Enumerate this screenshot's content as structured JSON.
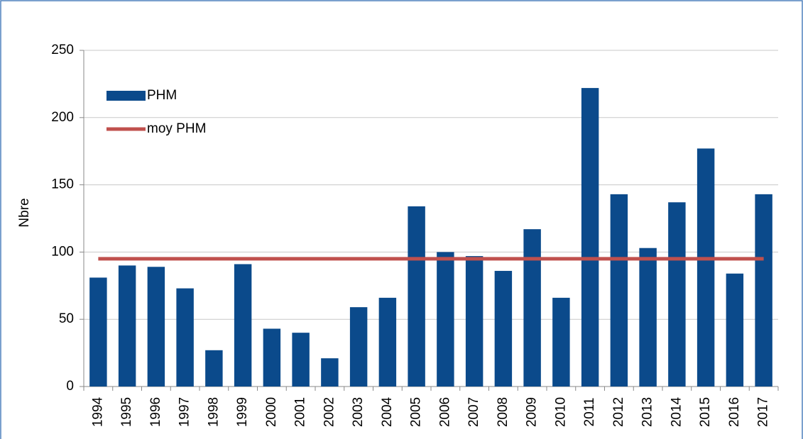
{
  "chart_data": {
    "type": "bar",
    "y_label": "Nbre",
    "categories": [
      "1994",
      "1995",
      "1996",
      "1997",
      "1998",
      "1999",
      "2000",
      "2001",
      "2002",
      "2003",
      "2004",
      "2005",
      "2006",
      "2007",
      "2008",
      "2009",
      "2010",
      "2011",
      "2012",
      "2013",
      "2014",
      "2015",
      "2016",
      "2017"
    ],
    "series": [
      {
        "name": "PHM",
        "type": "bar",
        "color": "#0b4a8b",
        "values": [
          81,
          90,
          89,
          73,
          27,
          91,
          43,
          40,
          21,
          59,
          66,
          134,
          100,
          97,
          86,
          117,
          66,
          222,
          143,
          103,
          137,
          177,
          84,
          143
        ]
      },
      {
        "name": "moy PHM",
        "type": "line",
        "color": "#c0504d",
        "values": [
          95,
          95,
          95,
          95,
          95,
          95,
          95,
          95,
          95,
          95,
          95,
          95,
          95,
          95,
          95,
          95,
          95,
          95,
          95,
          95,
          95,
          95,
          95,
          95
        ]
      }
    ],
    "ylim": [
      0,
      250
    ],
    "yticks": [
      0,
      50,
      100,
      150,
      200,
      250
    ],
    "grid": true,
    "legend": "top-left"
  }
}
